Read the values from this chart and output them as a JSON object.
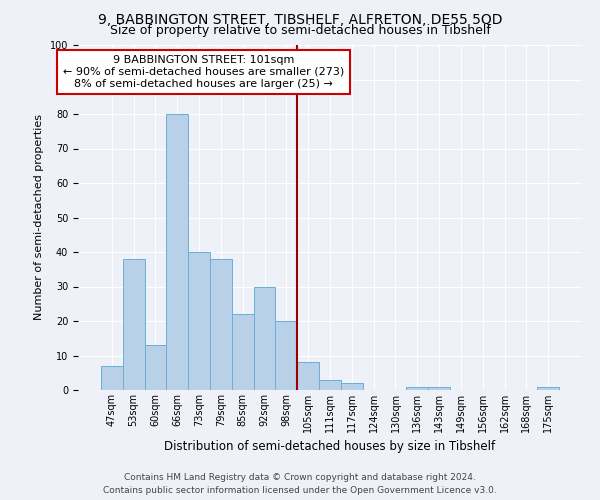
{
  "title": "9, BABBINGTON STREET, TIBSHELF, ALFRETON, DE55 5QD",
  "subtitle": "Size of property relative to semi-detached houses in Tibshelf",
  "xlabel": "Distribution of semi-detached houses by size in Tibshelf",
  "ylabel": "Number of semi-detached properties",
  "footer_line1": "Contains HM Land Registry data © Crown copyright and database right 2024.",
  "footer_line2": "Contains public sector information licensed under the Open Government Licence v3.0.",
  "categories": [
    "47sqm",
    "53sqm",
    "60sqm",
    "66sqm",
    "73sqm",
    "79sqm",
    "85sqm",
    "92sqm",
    "98sqm",
    "105sqm",
    "111sqm",
    "117sqm",
    "124sqm",
    "130sqm",
    "136sqm",
    "143sqm",
    "149sqm",
    "156sqm",
    "162sqm",
    "168sqm",
    "175sqm"
  ],
  "values": [
    7,
    38,
    13,
    80,
    40,
    38,
    22,
    30,
    20,
    8,
    3,
    2,
    0,
    0,
    1,
    1,
    0,
    0,
    0,
    0,
    1
  ],
  "bar_color": "#b8d0e8",
  "bar_edge_color": "#6aafd6",
  "vline_x": 8.5,
  "vline_color": "#990000",
  "annotation_text": "9 BABBINGTON STREET: 101sqm\n← 90% of semi-detached houses are smaller (273)\n8% of semi-detached houses are larger (25) →",
  "annotation_box_color": "#ffffff",
  "annotation_box_edge_color": "#cc0000",
  "ylim": [
    0,
    100
  ],
  "yticks": [
    0,
    10,
    20,
    30,
    40,
    50,
    60,
    70,
    80,
    90,
    100
  ],
  "background_color": "#eef2f8",
  "grid_color": "#ffffff",
  "title_fontsize": 10,
  "subtitle_fontsize": 9,
  "ylabel_fontsize": 8,
  "xlabel_fontsize": 8.5,
  "tick_fontsize": 7,
  "annotation_fontsize": 8,
  "footer_fontsize": 6.5
}
